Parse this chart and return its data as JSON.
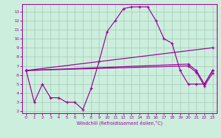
{
  "xlabel": "Windchill (Refroidissement éolien,°C)",
  "background_color": "#cceedd",
  "grid_color": "#aaccbb",
  "line_color": "#990099",
  "xlim": [
    -0.5,
    23.5
  ],
  "ylim": [
    1.8,
    13.8
  ],
  "xticks": [
    0,
    1,
    2,
    3,
    4,
    5,
    6,
    7,
    8,
    9,
    10,
    11,
    12,
    13,
    14,
    15,
    16,
    17,
    18,
    19,
    20,
    21,
    22,
    23
  ],
  "yticks": [
    2,
    3,
    4,
    5,
    6,
    7,
    8,
    9,
    10,
    11,
    12,
    13
  ],
  "line1_x": [
    0,
    1,
    2,
    3,
    4,
    5,
    6,
    7,
    8,
    9,
    10,
    11,
    12,
    13,
    14,
    15,
    16,
    17,
    18,
    19,
    20,
    21,
    22,
    23
  ],
  "line1_y": [
    6.5,
    3.0,
    5.0,
    3.5,
    3.5,
    3.0,
    3.0,
    2.2,
    4.5,
    7.5,
    10.8,
    12.0,
    13.3,
    13.5,
    13.5,
    13.5,
    12.0,
    10.0,
    9.5,
    6.5,
    5.0,
    5.0,
    5.0,
    6.5
  ],
  "line2_x": [
    0,
    23
  ],
  "line2_y": [
    6.5,
    9.0
  ],
  "line3_x": [
    0,
    20,
    21,
    22,
    23
  ],
  "line3_y": [
    6.5,
    7.2,
    6.5,
    5.0,
    6.5
  ],
  "line4_x": [
    0,
    20,
    21,
    22,
    23
  ],
  "line4_y": [
    6.5,
    7.0,
    6.3,
    4.8,
    6.2
  ]
}
